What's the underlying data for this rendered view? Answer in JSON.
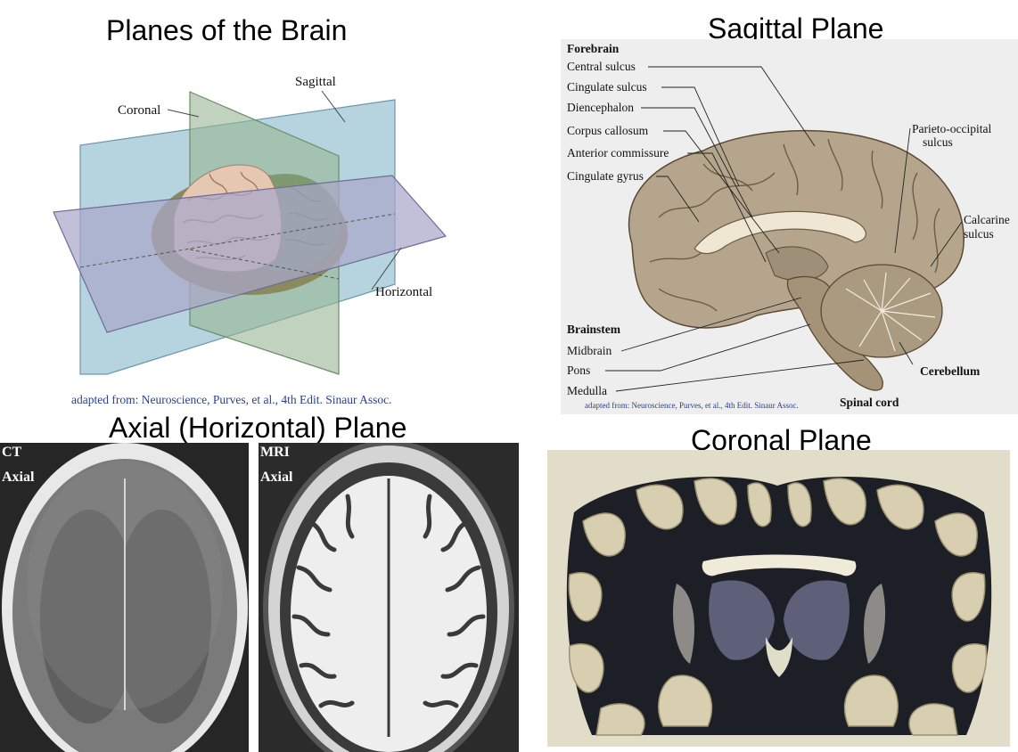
{
  "titles": {
    "planes": "Planes of the Brain",
    "sagittal": "Sagittal Plane",
    "axial": "Axial (Horizontal) Plane",
    "coronal": "Coronal Plane"
  },
  "planes_figure": {
    "labels": {
      "coronal": "Coronal",
      "sagittal": "Sagittal",
      "horizontal": "Horizontal"
    },
    "credit": "adapted from: Neuroscience, Purves, et al., 4th Edit. Sinaur Assoc."
  },
  "sagittal_figure": {
    "forebrain_heading": "Forebrain",
    "forebrain_labels": [
      "Central sulcus",
      "Cingulate sulcus",
      "Diencephalon",
      "Corpus callosum",
      "Anterior commissure",
      "Cingulate gyrus"
    ],
    "right_labels": {
      "parieto_1": "Parieto-occipital",
      "parieto_2": "sulcus",
      "calcarine_1": "Calcarine",
      "calcarine_2": "sulcus"
    },
    "brainstem_heading": "Brainstem",
    "brainstem_labels": [
      "Midbrain",
      "Pons",
      "Medulla"
    ],
    "cerebellum": "Cerebellum",
    "spinal_cord": "Spinal cord",
    "credit": "adapted from: Neuroscience, Purves, et al., 4th Edit. Sinaur Assoc."
  },
  "axial_scans": {
    "ct_1": "CT",
    "ct_2": "Axial",
    "mri_1": "MRI",
    "mri_2": "Axial"
  }
}
